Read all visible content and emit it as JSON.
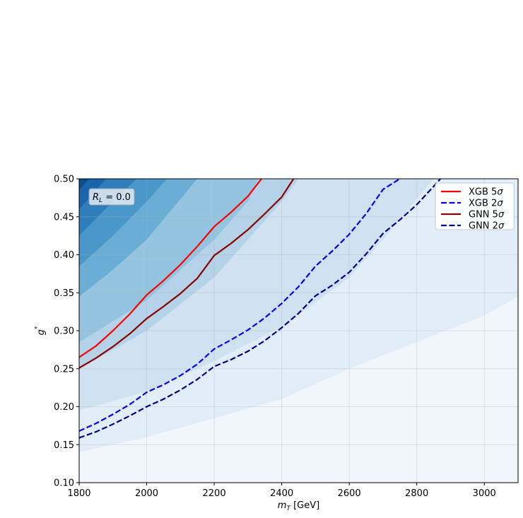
{
  "chart_data": {
    "type": "line",
    "title": "",
    "xlabel": "m_T [GeV]",
    "xlabel_main": "m",
    "xlabel_sub": "T",
    "xlabel_rest": " [GeV]",
    "ylabel": "g*",
    "ylabel_main": "g",
    "ylabel_sup": "*",
    "xlim": [
      1800,
      3100
    ],
    "ylim": [
      0.1,
      0.5
    ],
    "xticks": [
      1800,
      2000,
      2200,
      2400,
      2600,
      2800,
      3000
    ],
    "yticks": [
      0.1,
      0.15,
      0.2,
      0.25,
      0.3,
      0.35,
      0.4,
      0.45,
      0.5
    ],
    "xtick_labels": [
      "1800",
      "2000",
      "2200",
      "2400",
      "2600",
      "2800",
      "3000"
    ],
    "ytick_labels": [
      "0.10",
      "0.15",
      "0.20",
      "0.25",
      "0.30",
      "0.35",
      "0.40",
      "0.45",
      "0.50"
    ],
    "grid": true,
    "legend_position": "top-right",
    "annotation": {
      "text": "R_L = 0.0",
      "main": "R",
      "sub": "L",
      "rest": " = 0.0"
    },
    "background_contours": {
      "colormap": "Blues",
      "colors": [
        "#f0f6fc",
        "#e1edf8",
        "#d0e2f2",
        "#b4d3e9",
        "#94c4df",
        "#6aaed6",
        "#4a97c9",
        "#2f7ebc",
        "#1a64ac",
        "#0b4f91"
      ],
      "boundaries": [
        [
          [
            1800,
            0.14
          ],
          [
            2000,
            0.16
          ],
          [
            2200,
            0.185
          ],
          [
            2400,
            0.21
          ],
          [
            2600,
            0.25
          ],
          [
            2800,
            0.285
          ],
          [
            3000,
            0.32
          ],
          [
            3100,
            0.345
          ]
        ],
        [
          [
            1800,
            0.195
          ],
          [
            2000,
            0.22
          ],
          [
            2200,
            0.26
          ],
          [
            2400,
            0.305
          ],
          [
            2600,
            0.37
          ],
          [
            2700,
            0.42
          ],
          [
            2850,
            0.5
          ]
        ],
        [
          [
            1800,
            0.25
          ],
          [
            2000,
            0.3
          ],
          [
            2200,
            0.37
          ],
          [
            2300,
            0.42
          ],
          [
            2400,
            0.47
          ],
          [
            2450,
            0.5
          ]
        ],
        [
          [
            1800,
            0.285
          ],
          [
            2000,
            0.34
          ],
          [
            2200,
            0.42
          ],
          [
            2300,
            0.47
          ],
          [
            2330,
            0.5
          ]
        ],
        [
          [
            1800,
            0.345
          ],
          [
            1900,
            0.38
          ],
          [
            2000,
            0.42
          ],
          [
            2150,
            0.5
          ]
        ],
        [
          [
            1800,
            0.385
          ],
          [
            1900,
            0.425
          ],
          [
            2000,
            0.47
          ],
          [
            2060,
            0.5
          ]
        ],
        [
          [
            1800,
            0.425
          ],
          [
            1900,
            0.47
          ],
          [
            1970,
            0.5
          ]
        ],
        [
          [
            1800,
            0.46
          ],
          [
            1880,
            0.5
          ]
        ],
        [
          [
            1800,
            0.485
          ],
          [
            1830,
            0.5
          ]
        ]
      ]
    },
    "series": [
      {
        "name": "XGB 5σ",
        "name_main": "XGB 5",
        "name_symbol": "σ",
        "color": "#ff0000",
        "dashed": false,
        "x": [
          1800,
          1850,
          1900,
          1950,
          2000,
          2050,
          2100,
          2150,
          2200,
          2250,
          2300,
          2340
        ],
        "y": [
          0.265,
          0.28,
          0.3,
          0.322,
          0.347,
          0.366,
          0.387,
          0.411,
          0.437,
          0.456,
          0.477,
          0.5
        ]
      },
      {
        "name": "XGB 2σ",
        "name_main": "XGB 2",
        "name_symbol": "σ",
        "color": "#0000ff",
        "dashed": true,
        "x": [
          1800,
          1850,
          1900,
          1950,
          2000,
          2050,
          2100,
          2150,
          2200,
          2250,
          2300,
          2350,
          2400,
          2450,
          2500,
          2550,
          2600,
          2650,
          2700,
          2750
        ],
        "y": [
          0.168,
          0.178,
          0.19,
          0.203,
          0.219,
          0.229,
          0.241,
          0.256,
          0.276,
          0.288,
          0.301,
          0.317,
          0.336,
          0.358,
          0.385,
          0.405,
          0.427,
          0.454,
          0.486,
          0.5
        ]
      },
      {
        "name": "GNN 5σ",
        "name_main": "GNN 5",
        "name_symbol": "σ",
        "color": "#8b0000",
        "dashed": false,
        "x": [
          1800,
          1850,
          1900,
          1950,
          2000,
          2050,
          2100,
          2150,
          2200,
          2250,
          2300,
          2350,
          2400,
          2435
        ],
        "y": [
          0.251,
          0.264,
          0.279,
          0.296,
          0.316,
          0.332,
          0.349,
          0.369,
          0.399,
          0.415,
          0.433,
          0.454,
          0.476,
          0.5
        ]
      },
      {
        "name": "GNN 2σ",
        "name_main": "GNN 2",
        "name_symbol": "σ",
        "color": "#00008b",
        "dashed": true,
        "x": [
          1800,
          1850,
          1900,
          1950,
          2000,
          2050,
          2100,
          2150,
          2200,
          2250,
          2300,
          2350,
          2400,
          2450,
          2500,
          2550,
          2600,
          2650,
          2700,
          2750,
          2800,
          2850,
          2870
        ],
        "y": [
          0.159,
          0.167,
          0.177,
          0.188,
          0.2,
          0.21,
          0.222,
          0.236,
          0.253,
          0.262,
          0.273,
          0.287,
          0.304,
          0.323,
          0.346,
          0.36,
          0.377,
          0.401,
          0.428,
          0.446,
          0.466,
          0.49,
          0.5
        ]
      }
    ]
  }
}
